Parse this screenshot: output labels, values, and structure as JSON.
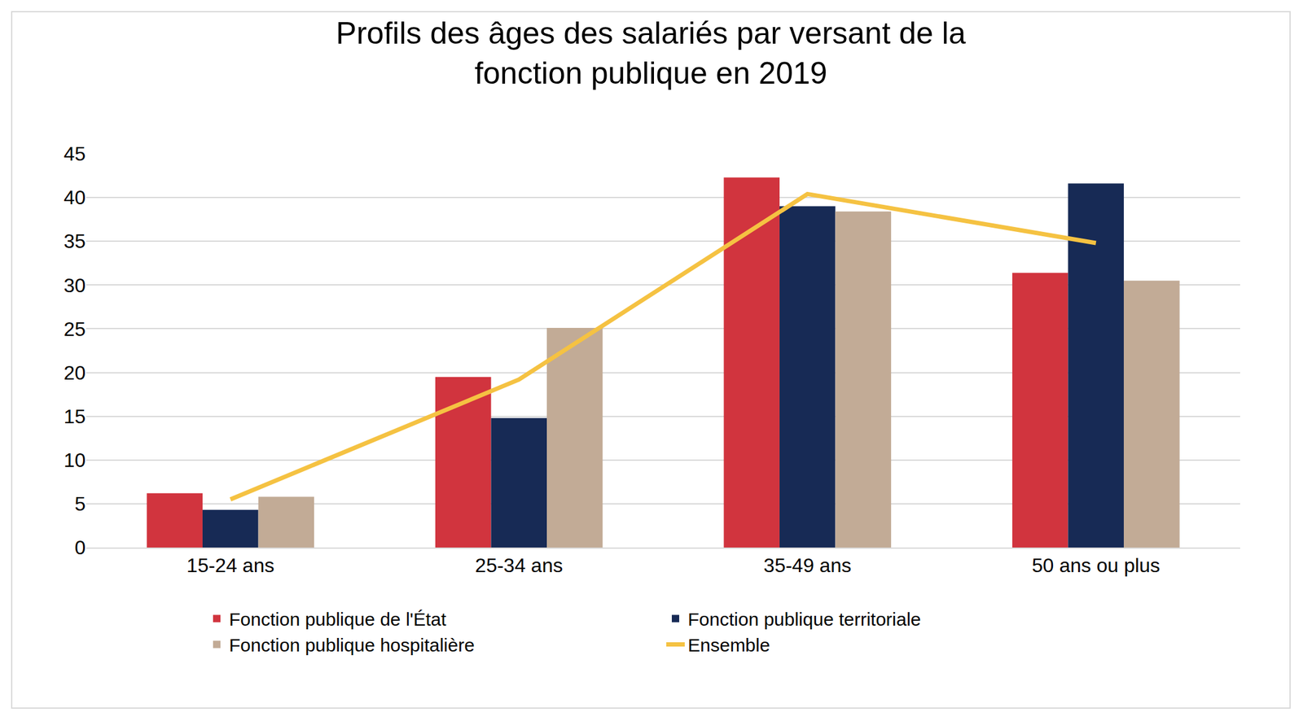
{
  "chart_data": {
    "type": "bar",
    "title": "Profils des âges des salariés par versant de la\nfonction publique en 2019",
    "categories": [
      "15-24 ans",
      "25-34 ans",
      "35-49 ans",
      "50 ans ou plus"
    ],
    "series": [
      {
        "name": "Fonction publique de l'État",
        "color": "#d1343e",
        "type": "bar",
        "values": [
          6.2,
          19.5,
          42.3,
          31.4
        ]
      },
      {
        "name": "Fonction publique territoriale",
        "color": "#172a55",
        "type": "bar",
        "values": [
          4.3,
          14.8,
          39.0,
          41.6
        ]
      },
      {
        "name": "Fonction publique hospitalière",
        "color": "#c2ab96",
        "type": "bar",
        "values": [
          5.8,
          25.1,
          38.4,
          30.5
        ]
      },
      {
        "name": "Ensemble",
        "color": "#f5c242",
        "type": "line",
        "values": [
          5.5,
          19.2,
          40.4,
          34.8
        ]
      }
    ],
    "ylim": [
      0,
      45
    ],
    "yticks": [
      0,
      5,
      10,
      15,
      20,
      25,
      30,
      35,
      40,
      45
    ],
    "grid": true,
    "legend": "bottom"
  }
}
